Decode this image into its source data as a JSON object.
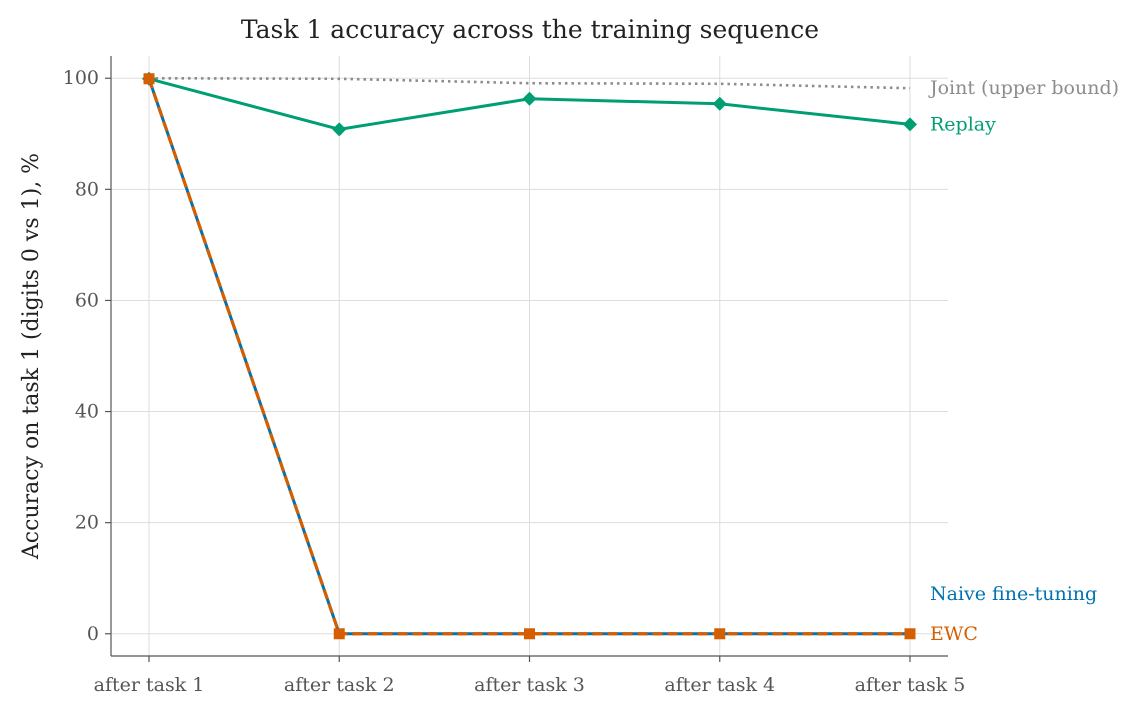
{
  "chart_data": {
    "type": "line",
    "title": "Task 1 accuracy across the training sequence",
    "ylabel": "Accuracy on task 1 (digits 0 vs 1), %",
    "xlabel": "",
    "categories": [
      "after task 1",
      "after task 2",
      "after task 3",
      "after task 4",
      "after task 5"
    ],
    "ylim": [
      -4,
      104
    ],
    "yticks": [
      0,
      20,
      40,
      60,
      80,
      100
    ],
    "grid": true,
    "legend": "direct labels at right end of each line",
    "series": [
      {
        "name": "Joint (upper bound)",
        "values": [
          100,
          99.9,
          99.1,
          99.0,
          98.2
        ],
        "color": "#8c8c8c",
        "style": "dotted",
        "marker": "none"
      },
      {
        "name": "Replay",
        "values": [
          99.9,
          90.8,
          96.3,
          95.4,
          91.7
        ],
        "color": "#009e73",
        "style": "solid",
        "marker": "diamond"
      },
      {
        "name": "Naive fine-tuning",
        "values": [
          99.9,
          0,
          0,
          0,
          0
        ],
        "color": "#0072b2",
        "style": "solid",
        "marker": "circle"
      },
      {
        "name": "EWC",
        "values": [
          99.9,
          0,
          0,
          0,
          0
        ],
        "color": "#d55e00",
        "style": "dashed",
        "marker": "square"
      }
    ]
  }
}
